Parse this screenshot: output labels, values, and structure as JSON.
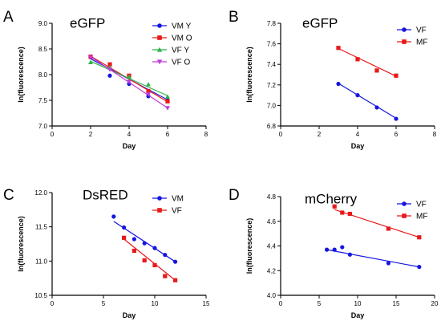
{
  "chart_data": [
    {
      "letter": "A",
      "title": "eGFP",
      "type": "scatter",
      "xlabel": "Day",
      "ylabel": "ln(fluorescence)",
      "xlim": [
        0,
        8
      ],
      "ylim": [
        7.0,
        9.0
      ],
      "xticks": [
        0,
        2,
        4,
        6,
        8
      ],
      "yticks": [
        7.0,
        7.5,
        8.0,
        8.5,
        9.0
      ],
      "ytick_decimals": 1,
      "legend_position": "top-right",
      "series": [
        {
          "name": "VM Y",
          "color": "#1515e0",
          "marker": "circle",
          "x": [
            2,
            3,
            4,
            5,
            6
          ],
          "y": [
            8.34,
            7.98,
            7.82,
            7.58,
            7.5
          ],
          "fit": [
            8.31,
            7.51
          ]
        },
        {
          "name": "VM O",
          "color": "#e8191b",
          "marker": "square",
          "x": [
            2,
            3,
            4,
            5,
            6
          ],
          "y": [
            8.35,
            8.2,
            7.98,
            7.68,
            7.48
          ],
          "fit": [
            8.36,
            7.47
          ]
        },
        {
          "name": "VF Y",
          "color": "#2db34a",
          "marker": "triangle-up",
          "x": [
            2,
            3,
            4,
            5,
            6
          ],
          "y": [
            8.24,
            8.14,
            7.96,
            7.81,
            7.57
          ],
          "fit": [
            8.26,
            7.59
          ]
        },
        {
          "name": "VF O",
          "color": "#c03bd8",
          "marker": "triangle-down",
          "x": [
            2,
            3,
            4,
            5,
            6
          ],
          "y": [
            8.34,
            8.1,
            7.86,
            7.62,
            7.35
          ],
          "fit": [
            8.35,
            7.35
          ]
        }
      ]
    },
    {
      "letter": "B",
      "title": "eGFP",
      "type": "scatter",
      "xlabel": "Day",
      "ylabel": "ln(fluorescence)",
      "xlim": [
        0,
        8
      ],
      "ylim": [
        6.8,
        7.8
      ],
      "xticks": [
        0,
        2,
        4,
        6,
        8
      ],
      "yticks": [
        6.8,
        7.0,
        7.2,
        7.4,
        7.6,
        7.8
      ],
      "ytick_decimals": 1,
      "legend_position": "top-right",
      "series": [
        {
          "name": "VF",
          "color": "#1515e0",
          "marker": "circle",
          "x": [
            3,
            4,
            5,
            6
          ],
          "y": [
            7.21,
            7.1,
            6.98,
            6.87
          ],
          "fit": [
            7.215,
            6.875
          ]
        },
        {
          "name": "MF",
          "color": "#e8191b",
          "marker": "square",
          "x": [
            3,
            4,
            5,
            6
          ],
          "y": [
            7.56,
            7.45,
            7.34,
            7.29
          ],
          "fit": [
            7.555,
            7.285
          ]
        }
      ]
    },
    {
      "letter": "C",
      "title": "DsRED",
      "type": "scatter",
      "xlabel": "Day",
      "ylabel": "ln(fluorescence)",
      "xlim": [
        0,
        15
      ],
      "ylim": [
        10.5,
        12.0
      ],
      "xticks": [
        0,
        5,
        10,
        15
      ],
      "yticks": [
        10.5,
        11.0,
        11.5,
        12.0
      ],
      "ytick_decimals": 1,
      "legend_position": "top-right",
      "series": [
        {
          "name": "VM",
          "color": "#1515e0",
          "marker": "circle",
          "x": [
            6,
            7,
            8,
            9,
            10,
            11,
            12
          ],
          "y": [
            11.65,
            11.49,
            11.32,
            11.26,
            11.19,
            11.09,
            10.99
          ],
          "fit": [
            11.58,
            10.99
          ]
        },
        {
          "name": "VF",
          "color": "#e8191b",
          "marker": "square",
          "x": [
            7,
            8,
            9,
            10,
            11,
            12
          ],
          "y": [
            11.34,
            11.15,
            11.01,
            10.94,
            10.78,
            10.72
          ],
          "fit": [
            11.32,
            10.72
          ]
        }
      ]
    },
    {
      "letter": "D",
      "title": "mCherry",
      "type": "scatter",
      "xlabel": "Day",
      "ylabel": "ln(fluorescence)",
      "xlim": [
        0,
        20
      ],
      "ylim": [
        4.0,
        4.8
      ],
      "xticks": [
        0,
        5,
        10,
        15,
        20
      ],
      "yticks": [
        4.0,
        4.2,
        4.4,
        4.6,
        4.8
      ],
      "ytick_decimals": 1,
      "legend_position": "top-right",
      "series": [
        {
          "name": "VF",
          "color": "#1515e0",
          "marker": "circle",
          "x": [
            6,
            7,
            8,
            9,
            14,
            18
          ],
          "y": [
            4.37,
            4.37,
            4.39,
            4.33,
            4.26,
            4.23
          ],
          "fit": [
            4.37,
            4.23
          ]
        },
        {
          "name": "MF",
          "color": "#e8191b",
          "marker": "square",
          "x": [
            7,
            8,
            9,
            14,
            18
          ],
          "y": [
            4.72,
            4.67,
            4.66,
            4.54,
            4.47
          ],
          "fit": [
            4.695,
            4.47
          ]
        }
      ]
    }
  ]
}
